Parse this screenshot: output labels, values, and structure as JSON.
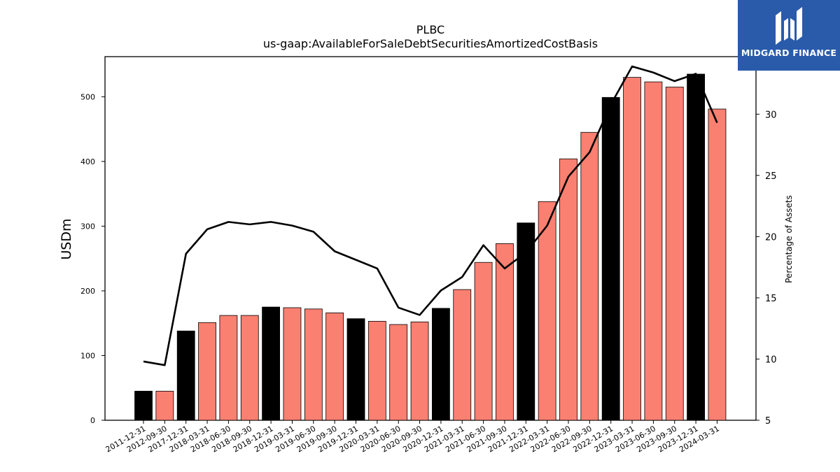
{
  "chart_data": {
    "type": "bar",
    "title": "PLBC",
    "subtitle": "us-gaap:AvailableForSaleDebtSecuritiesAmortizedCostBasis",
    "ylabel": "USDm",
    "y2label": "Percentage of Assets",
    "ylim": [
      0,
      562
    ],
    "y2lim": [
      5,
      34.7
    ],
    "yticks": [
      0,
      100,
      200,
      300,
      400,
      500
    ],
    "y2ticks": [
      5,
      10,
      15,
      20,
      25,
      30
    ],
    "grid": false,
    "categories": [
      "2011-12-31",
      "2012-09-30",
      "2017-12-31",
      "2018-03-31",
      "2018-06-30",
      "2018-09-30",
      "2018-12-31",
      "2019-03-31",
      "2019-06-30",
      "2019-09-30",
      "2019-12-31",
      "2020-03-31",
      "2020-06-30",
      "2020-09-30",
      "2020-12-31",
      "2021-03-31",
      "2021-06-30",
      "2021-09-30",
      "2021-12-31",
      "2022-03-31",
      "2022-06-30",
      "2022-09-30",
      "2022-12-31",
      "2023-03-31",
      "2023-06-30",
      "2023-09-30",
      "2023-12-31",
      "2024-03-31"
    ],
    "series": [
      {
        "type": "bar",
        "values": [
          45,
          45,
          138,
          151,
          162,
          162,
          175,
          174,
          172,
          166,
          157,
          153,
          148,
          152,
          173,
          202,
          244,
          273,
          305,
          338,
          404,
          445,
          499,
          530,
          523,
          515,
          535,
          481
        ],
        "colors": [
          "#000000",
          "#fa8072",
          "#000000",
          "#fa8072",
          "#fa8072",
          "#fa8072",
          "#000000",
          "#fa8072",
          "#fa8072",
          "#fa8072",
          "#000000",
          "#fa8072",
          "#fa8072",
          "#fa8072",
          "#000000",
          "#fa8072",
          "#fa8072",
          "#fa8072",
          "#000000",
          "#fa8072",
          "#fa8072",
          "#fa8072",
          "#000000",
          "#fa8072",
          "#fa8072",
          "#fa8072",
          "#000000",
          "#fa8072"
        ]
      },
      {
        "type": "line",
        "axis": "right",
        "color": "#000000",
        "values": [
          9.8,
          9.5,
          18.6,
          20.6,
          21.2,
          21.0,
          21.2,
          20.9,
          20.4,
          18.8,
          18.1,
          17.4,
          14.2,
          13.6,
          15.6,
          16.7,
          19.3,
          17.4,
          18.7,
          20.9,
          24.9,
          26.9,
          30.8,
          33.9,
          33.4,
          32.7,
          33.3,
          29.3
        ]
      }
    ]
  },
  "logo": {
    "text": "MIDGARD FINANCE",
    "background": "#2a5bab"
  }
}
